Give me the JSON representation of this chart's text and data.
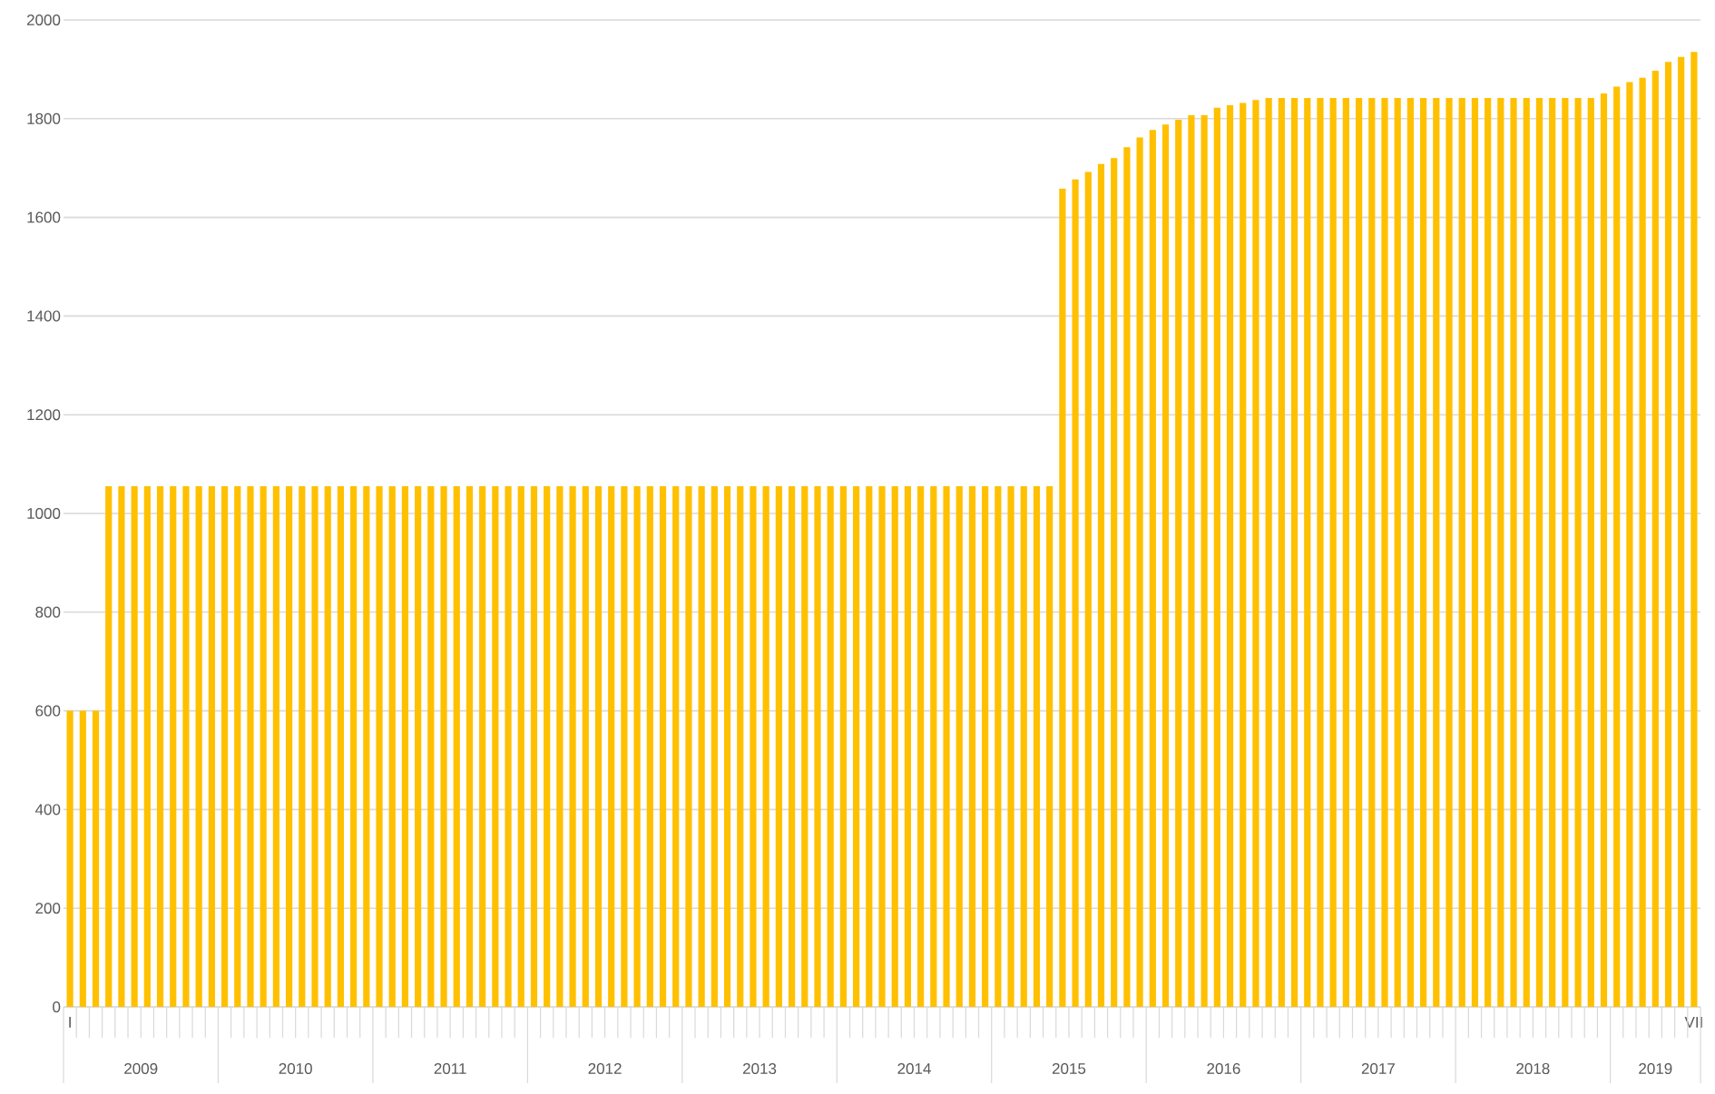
{
  "chart_data": {
    "type": "bar",
    "color": "#ffc000",
    "categories": [
      "I",
      null,
      null,
      null,
      null,
      null,
      null,
      null,
      null,
      null,
      null,
      null,
      null,
      null,
      null,
      null,
      null,
      null,
      null,
      null,
      null,
      null,
      null,
      null,
      null,
      null,
      null,
      null,
      null,
      null,
      null,
      null,
      null,
      null,
      null,
      null,
      null,
      null,
      null,
      null,
      null,
      null,
      null,
      null,
      null,
      null,
      null,
      null,
      null,
      null,
      null,
      null,
      null,
      null,
      null,
      null,
      null,
      null,
      null,
      null,
      null,
      null,
      null,
      null,
      null,
      null,
      null,
      null,
      null,
      null,
      null,
      null,
      null,
      null,
      null,
      null,
      null,
      null,
      null,
      null,
      null,
      null,
      null,
      null,
      null,
      null,
      null,
      null,
      null,
      null,
      null,
      null,
      null,
      null,
      null,
      null,
      null,
      null,
      null,
      null,
      null,
      null,
      null,
      null,
      null,
      null,
      null,
      null,
      null,
      null,
      null,
      null,
      null,
      null,
      null,
      null,
      null,
      null,
      null,
      null,
      null,
      null,
      null,
      null,
      null,
      null,
      "VII"
    ],
    "values": [
      600,
      600,
      600,
      1055,
      1055,
      1055,
      1055,
      1055,
      1055,
      1055,
      1055,
      1055,
      1055,
      1055,
      1055,
      1055,
      1055,
      1055,
      1055,
      1055,
      1055,
      1055,
      1055,
      1055,
      1055,
      1055,
      1055,
      1055,
      1055,
      1055,
      1055,
      1055,
      1055,
      1055,
      1055,
      1055,
      1055,
      1055,
      1055,
      1055,
      1055,
      1055,
      1055,
      1055,
      1055,
      1055,
      1055,
      1055,
      1055,
      1055,
      1055,
      1055,
      1055,
      1055,
      1055,
      1055,
      1055,
      1055,
      1055,
      1055,
      1055,
      1055,
      1055,
      1055,
      1055,
      1055,
      1055,
      1055,
      1055,
      1055,
      1055,
      1055,
      1055,
      1055,
      1055,
      1055,
      1055,
      1658,
      1677,
      1692,
      1708,
      1720,
      1742,
      1762,
      1777,
      1788,
      1798,
      1807,
      1807,
      1822,
      1827,
      1832,
      1838,
      1842,
      1842,
      1842,
      1842,
      1842,
      1842,
      1842,
      1842,
      1842,
      1842,
      1842,
      1842,
      1842,
      1842,
      1842,
      1842,
      1842,
      1842,
      1842,
      1842,
      1842,
      1842,
      1842,
      1842,
      1842,
      1842,
      1851,
      1865,
      1874,
      1883,
      1897,
      1915,
      1925,
      1935
    ],
    "annotations": [
      "2009",
      "2010",
      "2011",
      "2012",
      "2013",
      "2014",
      "2015",
      "2016",
      "2017",
      "2018",
      "2019"
    ],
    "ylim": [
      0,
      2000
    ],
    "yticks": [
      0,
      200,
      400,
      600,
      800,
      1000,
      1200,
      1400,
      1600,
      1800,
      2000
    ],
    "grid": "y"
  }
}
